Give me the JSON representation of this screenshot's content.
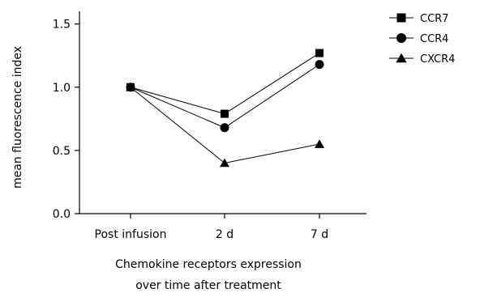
{
  "chart_data": {
    "type": "line",
    "categories": [
      "Post infusion",
      "2 d",
      "7 d"
    ],
    "series": [
      {
        "name": "CCR7",
        "marker": "square",
        "values": [
          1.0,
          0.79,
          1.27
        ]
      },
      {
        "name": "CCR4",
        "marker": "circle",
        "values": [
          1.0,
          0.68,
          1.18
        ]
      },
      {
        "name": "CXCR4",
        "marker": "triangle",
        "values": [
          1.0,
          0.4,
          0.55
        ]
      }
    ],
    "ylabel": "mean fluorescence index",
    "xlabel_lines": [
      "Chemokine receptors expression",
      "over time after treatment"
    ],
    "ylim": [
      0,
      1.6
    ],
    "yticks": [
      0.0,
      0.5,
      1.0,
      1.5
    ],
    "ytick_labels": [
      "0.0",
      "0.5",
      "1.0",
      "1.5"
    ],
    "grid": false,
    "legend_position": "top-right",
    "line_color": "#000000"
  }
}
